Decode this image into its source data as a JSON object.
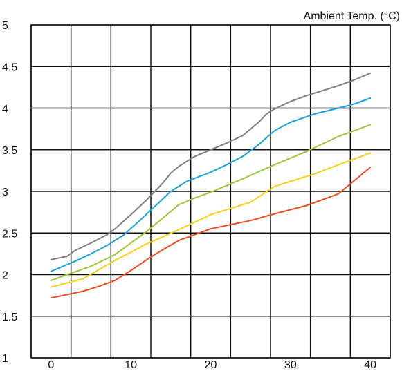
{
  "chart_data": {
    "type": "line",
    "title": "",
    "xlabel": "",
    "ylabel": "",
    "x_axis_title": "Ambient Temp. (°C)",
    "xlim": [
      -2.5,
      42.5
    ],
    "ylim": [
      1,
      5
    ],
    "x_ticks": [
      0,
      10,
      20,
      30,
      40
    ],
    "y_ticks": [
      1,
      1.5,
      2,
      2.5,
      3,
      3.5,
      4,
      4.5,
      5
    ],
    "x_grid": [
      -2.5,
      2.5,
      7.5,
      12.5,
      17.5,
      22.5,
      27.5,
      32.5,
      37.5,
      42.5
    ],
    "grid": true,
    "series": [
      {
        "color": "#7f7f7f",
        "points": [
          [
            0,
            2.18
          ],
          [
            2,
            2.22
          ],
          [
            3,
            2.29
          ],
          [
            5,
            2.38
          ],
          [
            7,
            2.48
          ],
          [
            8,
            2.55
          ],
          [
            10,
            2.72
          ],
          [
            12,
            2.9
          ],
          [
            14,
            3.1
          ],
          [
            15,
            3.22
          ],
          [
            16,
            3.3
          ],
          [
            18,
            3.42
          ],
          [
            20,
            3.5
          ],
          [
            22,
            3.58
          ],
          [
            24,
            3.67
          ],
          [
            25,
            3.75
          ],
          [
            26,
            3.83
          ],
          [
            27,
            3.93
          ],
          [
            28,
            3.99
          ],
          [
            30,
            4.08
          ],
          [
            32,
            4.15
          ],
          [
            34,
            4.21
          ],
          [
            36,
            4.27
          ],
          [
            38,
            4.34
          ],
          [
            40,
            4.42
          ]
        ]
      },
      {
        "color": "#1ba1dc",
        "points": [
          [
            0,
            2.04
          ],
          [
            3,
            2.16
          ],
          [
            5,
            2.25
          ],
          [
            7,
            2.35
          ],
          [
            9,
            2.47
          ],
          [
            11,
            2.64
          ],
          [
            13,
            2.82
          ],
          [
            15,
            3.0
          ],
          [
            17,
            3.12
          ],
          [
            20,
            3.23
          ],
          [
            22,
            3.32
          ],
          [
            24,
            3.42
          ],
          [
            26,
            3.56
          ],
          [
            28,
            3.73
          ],
          [
            30,
            3.83
          ],
          [
            33,
            3.93
          ],
          [
            36,
            4.0
          ],
          [
            38,
            4.05
          ],
          [
            40,
            4.12
          ]
        ]
      },
      {
        "color": "#9cc63c",
        "points": [
          [
            0,
            1.93
          ],
          [
            2,
            2.0
          ],
          [
            5,
            2.1
          ],
          [
            8,
            2.24
          ],
          [
            10,
            2.38
          ],
          [
            12,
            2.52
          ],
          [
            14,
            2.68
          ],
          [
            16,
            2.84
          ],
          [
            18,
            2.92
          ],
          [
            20,
            2.99
          ],
          [
            24,
            3.15
          ],
          [
            28,
            3.32
          ],
          [
            32,
            3.48
          ],
          [
            36,
            3.66
          ],
          [
            40,
            3.8
          ]
        ]
      },
      {
        "color": "#f7d11a",
        "points": [
          [
            0,
            1.85
          ],
          [
            4,
            1.95
          ],
          [
            6,
            2.06
          ],
          [
            8,
            2.17
          ],
          [
            10,
            2.27
          ],
          [
            12,
            2.37
          ],
          [
            16,
            2.54
          ],
          [
            20,
            2.72
          ],
          [
            25,
            2.87
          ],
          [
            28,
            3.06
          ],
          [
            30,
            3.12
          ],
          [
            33,
            3.21
          ],
          [
            36,
            3.32
          ],
          [
            40,
            3.46
          ]
        ]
      },
      {
        "color": "#ee4d24",
        "points": [
          [
            0,
            1.72
          ],
          [
            4,
            1.8
          ],
          [
            6,
            1.86
          ],
          [
            8,
            1.93
          ],
          [
            10,
            2.05
          ],
          [
            12,
            2.18
          ],
          [
            14,
            2.3
          ],
          [
            16,
            2.41
          ],
          [
            20,
            2.55
          ],
          [
            25,
            2.65
          ],
          [
            28,
            2.73
          ],
          [
            32,
            2.83
          ],
          [
            36,
            2.97
          ],
          [
            40,
            3.29
          ]
        ]
      }
    ]
  }
}
